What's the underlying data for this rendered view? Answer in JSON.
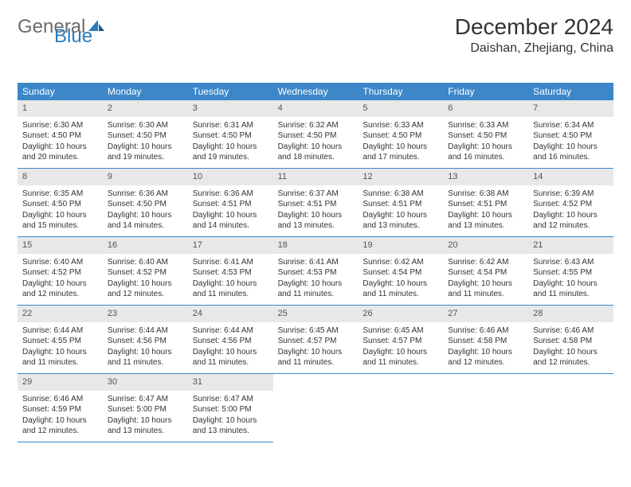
{
  "logo": {
    "word1": "General",
    "word2": "Blue"
  },
  "colors": {
    "header_bg": "#3b87c8",
    "header_text": "#ffffff",
    "daynum_bg": "#e8e8e8",
    "daynum_text": "#555555",
    "body_text": "#333333",
    "rule": "#3b87c8",
    "logo_gray": "#6b6b6b",
    "logo_blue": "#2a7bbd",
    "page_bg": "#ffffff"
  },
  "title": "December 2024",
  "location": "Daishan, Zhejiang, China",
  "weekdays": [
    "Sunday",
    "Monday",
    "Tuesday",
    "Wednesday",
    "Thursday",
    "Friday",
    "Saturday"
  ],
  "weeks": [
    [
      {
        "n": "1",
        "sunrise": "Sunrise: 6:30 AM",
        "sunset": "Sunset: 4:50 PM",
        "day": "Daylight: 10 hours and 20 minutes."
      },
      {
        "n": "2",
        "sunrise": "Sunrise: 6:30 AM",
        "sunset": "Sunset: 4:50 PM",
        "day": "Daylight: 10 hours and 19 minutes."
      },
      {
        "n": "3",
        "sunrise": "Sunrise: 6:31 AM",
        "sunset": "Sunset: 4:50 PM",
        "day": "Daylight: 10 hours and 19 minutes."
      },
      {
        "n": "4",
        "sunrise": "Sunrise: 6:32 AM",
        "sunset": "Sunset: 4:50 PM",
        "day": "Daylight: 10 hours and 18 minutes."
      },
      {
        "n": "5",
        "sunrise": "Sunrise: 6:33 AM",
        "sunset": "Sunset: 4:50 PM",
        "day": "Daylight: 10 hours and 17 minutes."
      },
      {
        "n": "6",
        "sunrise": "Sunrise: 6:33 AM",
        "sunset": "Sunset: 4:50 PM",
        "day": "Daylight: 10 hours and 16 minutes."
      },
      {
        "n": "7",
        "sunrise": "Sunrise: 6:34 AM",
        "sunset": "Sunset: 4:50 PM",
        "day": "Daylight: 10 hours and 16 minutes."
      }
    ],
    [
      {
        "n": "8",
        "sunrise": "Sunrise: 6:35 AM",
        "sunset": "Sunset: 4:50 PM",
        "day": "Daylight: 10 hours and 15 minutes."
      },
      {
        "n": "9",
        "sunrise": "Sunrise: 6:36 AM",
        "sunset": "Sunset: 4:50 PM",
        "day": "Daylight: 10 hours and 14 minutes."
      },
      {
        "n": "10",
        "sunrise": "Sunrise: 6:36 AM",
        "sunset": "Sunset: 4:51 PM",
        "day": "Daylight: 10 hours and 14 minutes."
      },
      {
        "n": "11",
        "sunrise": "Sunrise: 6:37 AM",
        "sunset": "Sunset: 4:51 PM",
        "day": "Daylight: 10 hours and 13 minutes."
      },
      {
        "n": "12",
        "sunrise": "Sunrise: 6:38 AM",
        "sunset": "Sunset: 4:51 PM",
        "day": "Daylight: 10 hours and 13 minutes."
      },
      {
        "n": "13",
        "sunrise": "Sunrise: 6:38 AM",
        "sunset": "Sunset: 4:51 PM",
        "day": "Daylight: 10 hours and 13 minutes."
      },
      {
        "n": "14",
        "sunrise": "Sunrise: 6:39 AM",
        "sunset": "Sunset: 4:52 PM",
        "day": "Daylight: 10 hours and 12 minutes."
      }
    ],
    [
      {
        "n": "15",
        "sunrise": "Sunrise: 6:40 AM",
        "sunset": "Sunset: 4:52 PM",
        "day": "Daylight: 10 hours and 12 minutes."
      },
      {
        "n": "16",
        "sunrise": "Sunrise: 6:40 AM",
        "sunset": "Sunset: 4:52 PM",
        "day": "Daylight: 10 hours and 12 minutes."
      },
      {
        "n": "17",
        "sunrise": "Sunrise: 6:41 AM",
        "sunset": "Sunset: 4:53 PM",
        "day": "Daylight: 10 hours and 11 minutes."
      },
      {
        "n": "18",
        "sunrise": "Sunrise: 6:41 AM",
        "sunset": "Sunset: 4:53 PM",
        "day": "Daylight: 10 hours and 11 minutes."
      },
      {
        "n": "19",
        "sunrise": "Sunrise: 6:42 AM",
        "sunset": "Sunset: 4:54 PM",
        "day": "Daylight: 10 hours and 11 minutes."
      },
      {
        "n": "20",
        "sunrise": "Sunrise: 6:42 AM",
        "sunset": "Sunset: 4:54 PM",
        "day": "Daylight: 10 hours and 11 minutes."
      },
      {
        "n": "21",
        "sunrise": "Sunrise: 6:43 AM",
        "sunset": "Sunset: 4:55 PM",
        "day": "Daylight: 10 hours and 11 minutes."
      }
    ],
    [
      {
        "n": "22",
        "sunrise": "Sunrise: 6:44 AM",
        "sunset": "Sunset: 4:55 PM",
        "day": "Daylight: 10 hours and 11 minutes."
      },
      {
        "n": "23",
        "sunrise": "Sunrise: 6:44 AM",
        "sunset": "Sunset: 4:56 PM",
        "day": "Daylight: 10 hours and 11 minutes."
      },
      {
        "n": "24",
        "sunrise": "Sunrise: 6:44 AM",
        "sunset": "Sunset: 4:56 PM",
        "day": "Daylight: 10 hours and 11 minutes."
      },
      {
        "n": "25",
        "sunrise": "Sunrise: 6:45 AM",
        "sunset": "Sunset: 4:57 PM",
        "day": "Daylight: 10 hours and 11 minutes."
      },
      {
        "n": "26",
        "sunrise": "Sunrise: 6:45 AM",
        "sunset": "Sunset: 4:57 PM",
        "day": "Daylight: 10 hours and 11 minutes."
      },
      {
        "n": "27",
        "sunrise": "Sunrise: 6:46 AM",
        "sunset": "Sunset: 4:58 PM",
        "day": "Daylight: 10 hours and 12 minutes."
      },
      {
        "n": "28",
        "sunrise": "Sunrise: 6:46 AM",
        "sunset": "Sunset: 4:58 PM",
        "day": "Daylight: 10 hours and 12 minutes."
      }
    ],
    [
      {
        "n": "29",
        "sunrise": "Sunrise: 6:46 AM",
        "sunset": "Sunset: 4:59 PM",
        "day": "Daylight: 10 hours and 12 minutes."
      },
      {
        "n": "30",
        "sunrise": "Sunrise: 6:47 AM",
        "sunset": "Sunset: 5:00 PM",
        "day": "Daylight: 10 hours and 13 minutes."
      },
      {
        "n": "31",
        "sunrise": "Sunrise: 6:47 AM",
        "sunset": "Sunset: 5:00 PM",
        "day": "Daylight: 10 hours and 13 minutes."
      },
      null,
      null,
      null,
      null
    ]
  ]
}
